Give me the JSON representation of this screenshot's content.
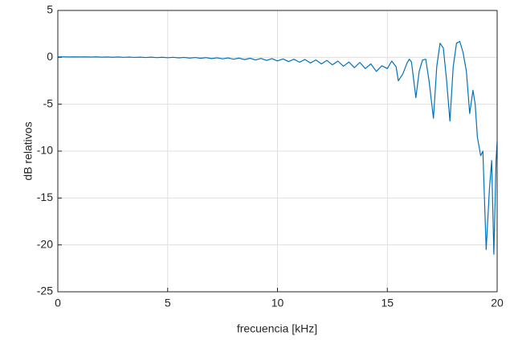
{
  "chart_data": {
    "type": "line",
    "xlabel": "frecuencia [kHz]",
    "ylabel": "dB relativos",
    "xlim": [
      0,
      20
    ],
    "ylim": [
      -25,
      5
    ],
    "xticks": [
      0,
      5,
      10,
      15,
      20
    ],
    "yticks": [
      -25,
      -20,
      -15,
      -10,
      -5,
      0,
      5
    ],
    "grid": true,
    "color": "#0072bd",
    "x": [
      0,
      0.25,
      0.5,
      0.75,
      1,
      1.25,
      1.5,
      1.75,
      2,
      2.25,
      2.5,
      2.75,
      3,
      3.25,
      3.5,
      3.75,
      4,
      4.25,
      4.5,
      4.75,
      5,
      5.25,
      5.5,
      5.75,
      6,
      6.25,
      6.5,
      6.75,
      7,
      7.25,
      7.5,
      7.75,
      8,
      8.25,
      8.5,
      8.75,
      9,
      9.25,
      9.5,
      9.75,
      10,
      10.25,
      10.5,
      10.75,
      11,
      11.25,
      11.5,
      11.75,
      12,
      12.25,
      12.5,
      12.75,
      13,
      13.25,
      13.5,
      13.75,
      14,
      14.25,
      14.5,
      14.75,
      15,
      15.2,
      15.4,
      15.5,
      15.7,
      15.9,
      16.0,
      16.1,
      16.3,
      16.45,
      16.6,
      16.75,
      16.9,
      17.1,
      17.25,
      17.4,
      17.55,
      17.7,
      17.85,
      18.0,
      18.15,
      18.3,
      18.45,
      18.6,
      18.75,
      18.9,
      19.0,
      19.1,
      19.25,
      19.35,
      19.5,
      19.65,
      19.75,
      19.85,
      19.95,
      20.0
    ],
    "values": [
      0.05,
      0.05,
      0.04,
      0.05,
      0.04,
      0.05,
      0.03,
      0.05,
      0.02,
      0.04,
      0.01,
      0.04,
      0.0,
      0.03,
      -0.01,
      0.02,
      -0.02,
      0.02,
      -0.03,
      0.01,
      -0.04,
      0.0,
      -0.06,
      -0.01,
      -0.08,
      -0.02,
      -0.1,
      -0.03,
      -0.13,
      -0.05,
      -0.16,
      -0.06,
      -0.2,
      -0.08,
      -0.24,
      -0.1,
      -0.28,
      -0.12,
      -0.33,
      -0.14,
      -0.38,
      -0.17,
      -0.45,
      -0.2,
      -0.52,
      -0.23,
      -0.6,
      -0.28,
      -0.7,
      -0.33,
      -0.8,
      -0.4,
      -0.95,
      -0.5,
      -1.1,
      -0.55,
      -1.2,
      -0.7,
      -1.5,
      -0.9,
      -1.2,
      -0.4,
      -1.0,
      -2.5,
      -1.8,
      -0.6,
      -0.2,
      -0.5,
      -4.3,
      -1.5,
      -0.3,
      -0.2,
      -2.5,
      -6.5,
      -1.0,
      1.5,
      1.0,
      -2.5,
      -6.8,
      -1.0,
      1.5,
      1.7,
      0.5,
      -1.5,
      -6.0,
      -3.5,
      -5.0,
      -8.5,
      -10.5,
      -10.0,
      -20.5,
      -14.0,
      -11.0,
      -21.0,
      -11.0,
      -9.0
    ]
  }
}
